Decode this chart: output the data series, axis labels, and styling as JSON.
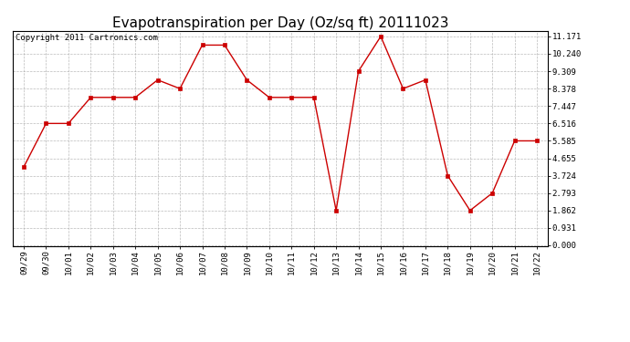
{
  "title": "Evapotranspiration per Day (Oz/sq ft) 20111023",
  "copyright": "Copyright 2011 Cartronics.com",
  "dates": [
    "09/29",
    "09/30",
    "10/01",
    "10/02",
    "10/03",
    "10/04",
    "10/05",
    "10/06",
    "10/07",
    "10/08",
    "10/09",
    "10/10",
    "10/11",
    "10/12",
    "10/13",
    "10/14",
    "10/15",
    "10/16",
    "10/17",
    "10/18",
    "10/19",
    "10/20",
    "10/21",
    "10/22"
  ],
  "values": [
    4.189,
    6.516,
    6.516,
    7.909,
    7.909,
    7.909,
    8.843,
    8.378,
    10.706,
    10.706,
    8.843,
    7.909,
    7.909,
    7.909,
    1.862,
    9.309,
    11.171,
    8.378,
    8.843,
    3.724,
    1.862,
    2.793,
    5.585,
    5.585
  ],
  "line_color": "#cc0000",
  "marker": "s",
  "marker_size": 2.5,
  "bg_color": "#ffffff",
  "grid_color": "#aaaaaa",
  "yticks": [
    0.0,
    0.931,
    1.862,
    2.793,
    3.724,
    4.655,
    5.585,
    6.516,
    7.447,
    8.378,
    9.309,
    10.24,
    11.171
  ],
  "ylim": [
    0.0,
    11.171
  ],
  "title_fontsize": 11,
  "copyright_fontsize": 6.5,
  "tick_fontsize": 6.5
}
